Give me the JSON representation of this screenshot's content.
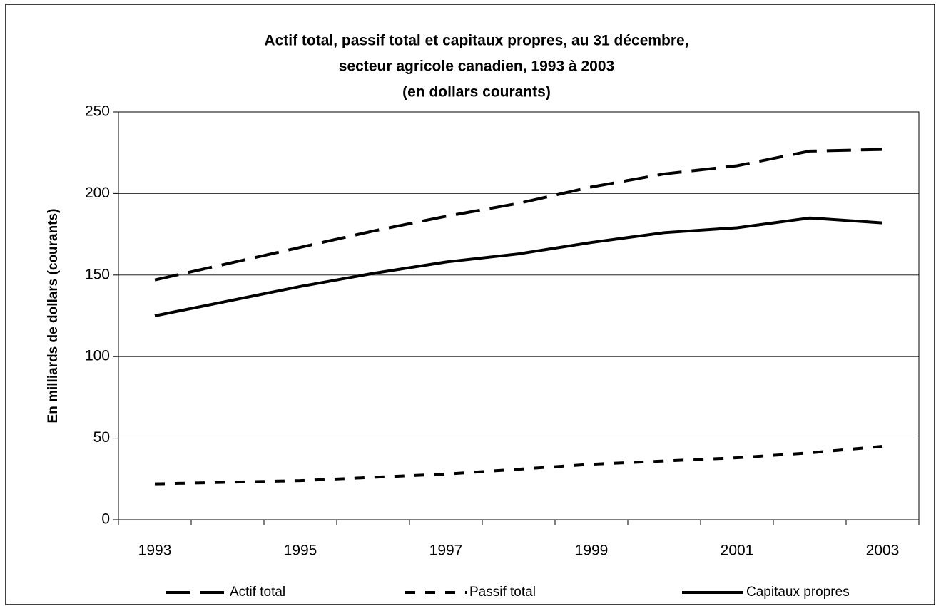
{
  "chart_data": {
    "type": "line",
    "title": [
      "Actif total, passif total et capitaux propres, au 31 décembre,",
      "secteur agricole canadien, 1993 à 2003",
      "(en dollars courants)"
    ],
    "y_label": "En milliards de dollars (courants)",
    "categories": [
      "1993",
      null,
      "1995",
      null,
      "1997",
      null,
      "1999",
      null,
      "2001",
      null,
      "2003"
    ],
    "series": [
      {
        "name": "Actif total",
        "color": "#000000",
        "dash": "long",
        "values": [
          147,
          157,
          167,
          177,
          186,
          194,
          204,
          212,
          217,
          226,
          227
        ]
      },
      {
        "name": "Passif total",
        "color": "#000000",
        "dash": "short",
        "values": [
          22,
          23,
          24,
          26,
          28,
          31,
          34,
          36,
          38,
          41,
          45
        ]
      },
      {
        "name": "Capitaux propres",
        "color": "#000000",
        "dash": "solid",
        "values": [
          125,
          134,
          143,
          151,
          158,
          163,
          170,
          176,
          179,
          185,
          182
        ]
      }
    ],
    "ylim": [
      0,
      250
    ],
    "yticks": [
      0,
      50,
      100,
      150,
      200,
      250
    ],
    "grid": true,
    "legend": "bottom"
  }
}
